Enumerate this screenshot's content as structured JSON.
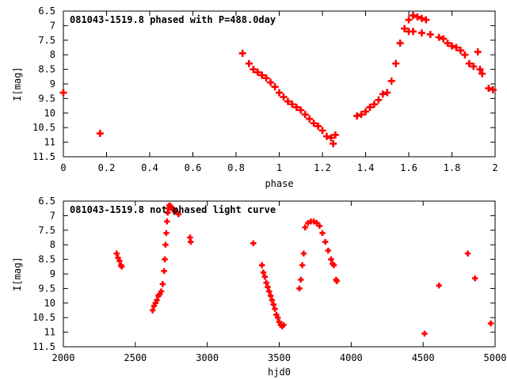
{
  "chart_data": [
    {
      "type": "scatter",
      "title": "081043-1519.8 phased with P=488.0day",
      "xlabel": "phase",
      "ylabel": "I[mag]",
      "xlim": [
        0,
        2
      ],
      "ylim": [
        6.5,
        11.5
      ],
      "y_inverted": true,
      "xticks": [
        0,
        0.2,
        0.4,
        0.6,
        0.8,
        1,
        1.2,
        1.4,
        1.6,
        1.8,
        2
      ],
      "xtick_labels": [
        "0",
        "0.2",
        "0.4",
        "0.6",
        "0.8",
        "1",
        "1.2",
        "1.4",
        "1.6",
        "1.8",
        "2"
      ],
      "yticks": [
        6.5,
        7,
        7.5,
        8,
        8.5,
        9,
        9.5,
        10,
        10.5,
        11,
        11.5
      ],
      "ytick_labels": [
        "6.5",
        "7",
        "7.5",
        "8",
        "8.5",
        "9",
        "9.5",
        "10",
        "10.5",
        "11",
        "11.5"
      ],
      "marker_color": "#ff0000",
      "grid": false,
      "x": [
        0.0,
        0.17,
        0.83,
        0.86,
        0.88,
        0.9,
        0.92,
        0.94,
        0.96,
        0.98,
        1.0,
        1.02,
        1.04,
        1.06,
        1.08,
        1.1,
        1.12,
        1.14,
        1.16,
        1.18,
        1.2,
        1.22,
        1.24,
        1.25,
        1.26,
        1.36,
        1.38,
        1.4,
        1.42,
        1.44,
        1.46,
        1.48,
        1.5,
        1.52,
        1.54,
        1.56,
        1.58,
        1.6,
        1.62,
        1.64,
        1.66,
        1.68,
        1.6,
        1.62,
        1.66,
        1.7,
        1.74,
        1.76,
        1.78,
        1.8,
        1.82,
        1.84,
        1.86,
        1.88,
        1.9,
        1.92,
        1.93,
        1.94,
        1.97,
        1.99
      ],
      "y": [
        9.3,
        10.7,
        7.95,
        8.3,
        8.5,
        8.6,
        8.7,
        8.8,
        8.95,
        9.1,
        9.3,
        9.45,
        9.6,
        9.7,
        9.8,
        9.9,
        10.05,
        10.2,
        10.35,
        10.45,
        10.6,
        10.8,
        10.85,
        11.05,
        10.75,
        10.1,
        10.05,
        9.95,
        9.8,
        9.7,
        9.55,
        9.35,
        9.3,
        8.9,
        8.3,
        7.6,
        7.1,
        6.8,
        6.65,
        6.7,
        6.75,
        6.8,
        7.2,
        7.2,
        7.25,
        7.3,
        7.4,
        7.45,
        7.6,
        7.7,
        7.75,
        7.85,
        8.0,
        8.3,
        8.4,
        7.9,
        8.5,
        8.65,
        9.15,
        9.2
      ]
    },
    {
      "type": "scatter",
      "title": "081043-1519.8 not phased light curve",
      "xlabel": "hjd0",
      "ylabel": "I[mag]",
      "xlim": [
        2000,
        5000
      ],
      "ylim": [
        6.5,
        11.5
      ],
      "y_inverted": true,
      "xticks": [
        2000,
        2500,
        3000,
        3500,
        4000,
        4500,
        5000
      ],
      "xtick_labels": [
        "2000",
        "2500",
        "3000",
        "3500",
        "4000",
        "4500",
        "5000"
      ],
      "yticks": [
        6.5,
        7,
        7.5,
        8,
        8.5,
        9,
        9.5,
        10,
        10.5,
        11,
        11.5
      ],
      "ytick_labels": [
        "6.5",
        "7",
        "7.5",
        "8",
        "8.5",
        "9",
        "9.5",
        "10",
        "10.5",
        "11",
        "11.5"
      ],
      "marker_color": "#ff0000",
      "grid": false,
      "x": [
        2370,
        2380,
        2390,
        2400,
        2405,
        2620,
        2630,
        2640,
        2650,
        2660,
        2670,
        2680,
        2690,
        2700,
        2705,
        2710,
        2715,
        2720,
        2725,
        2730,
        2735,
        2740,
        2745,
        2750,
        2760,
        2780,
        2800,
        2880,
        2885,
        3320,
        3380,
        3390,
        3400,
        3410,
        3420,
        3430,
        3440,
        3450,
        3460,
        3470,
        3480,
        3490,
        3500,
        3510,
        3520,
        3530,
        3640,
        3650,
        3660,
        3670,
        3680,
        3700,
        3720,
        3740,
        3760,
        3780,
        3800,
        3820,
        3840,
        3860,
        3870,
        3880,
        3895,
        3900,
        4510,
        4610,
        4810,
        4860,
        4970
      ],
      "y": [
        8.3,
        8.45,
        8.55,
        8.7,
        8.75,
        10.25,
        10.1,
        10.0,
        9.9,
        9.75,
        9.7,
        9.6,
        9.35,
        8.9,
        8.5,
        8.0,
        7.6,
        7.2,
        6.9,
        6.75,
        6.65,
        6.65,
        6.7,
        6.7,
        6.8,
        6.85,
        6.95,
        7.75,
        7.9,
        7.95,
        8.7,
        8.95,
        9.1,
        9.3,
        9.45,
        9.6,
        9.75,
        9.9,
        10.05,
        10.2,
        10.4,
        10.5,
        10.65,
        10.75,
        10.8,
        10.75,
        9.5,
        9.2,
        8.7,
        8.3,
        7.4,
        7.25,
        7.2,
        7.2,
        7.25,
        7.35,
        7.6,
        7.9,
        8.2,
        8.5,
        8.65,
        8.7,
        9.2,
        9.25,
        11.05,
        9.4,
        8.3,
        9.15,
        10.7
      ]
    }
  ]
}
